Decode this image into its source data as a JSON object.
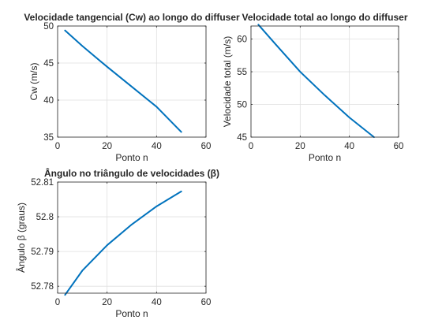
{
  "figure": {
    "background": "#ffffff",
    "line_color": "#0072BD",
    "grid_color": "#dfdfdf",
    "axes_color": "#262626"
  },
  "chart_data": [
    {
      "type": "line",
      "title": "Velocidade tangencial (Cw) ao longo do diffuser",
      "xlabel": "Ponto n",
      "ylabel": "Cw (m/s)",
      "xlim": [
        0,
        60
      ],
      "ylim": [
        35,
        50
      ],
      "xticks": [
        0,
        20,
        40,
        60
      ],
      "yticks": [
        35,
        40,
        45,
        50
      ],
      "grid": true,
      "series": [
        {
          "x": [
            3,
            10,
            20,
            30,
            40,
            50
          ],
          "y": [
            49.4,
            47.3,
            44.5,
            41.8,
            39.1,
            35.7
          ]
        }
      ]
    },
    {
      "type": "line",
      "title": "Velocidade total ao longo do diffuser",
      "xlabel": "Ponto n",
      "ylabel": "Velocidade total (m/s)",
      "xlim": [
        0,
        60
      ],
      "ylim": [
        45,
        62
      ],
      "xticks": [
        0,
        20,
        40,
        60
      ],
      "yticks": [
        45,
        50,
        55,
        60
      ],
      "grid": true,
      "series": [
        {
          "x": [
            3,
            10,
            20,
            30,
            40,
            50
          ],
          "y": [
            62.2,
            59.2,
            55.0,
            51.4,
            48.0,
            45.0
          ]
        }
      ]
    },
    {
      "type": "line",
      "title": "Ângulo no triângulo de velocidades (β)",
      "xlabel": "Ponto n",
      "ylabel": "Ângulo β (graus)",
      "xlim": [
        0,
        60
      ],
      "ylim": [
        52.778,
        52.81
      ],
      "xticks": [
        0,
        20,
        40,
        60
      ],
      "yticks": [
        52.78,
        52.79,
        52.8,
        52.81
      ],
      "grid": true,
      "series": [
        {
          "x": [
            3,
            10,
            20,
            30,
            40,
            50
          ],
          "y": [
            52.7775,
            52.7845,
            52.7918,
            52.7978,
            52.803,
            52.8073
          ]
        }
      ]
    }
  ]
}
